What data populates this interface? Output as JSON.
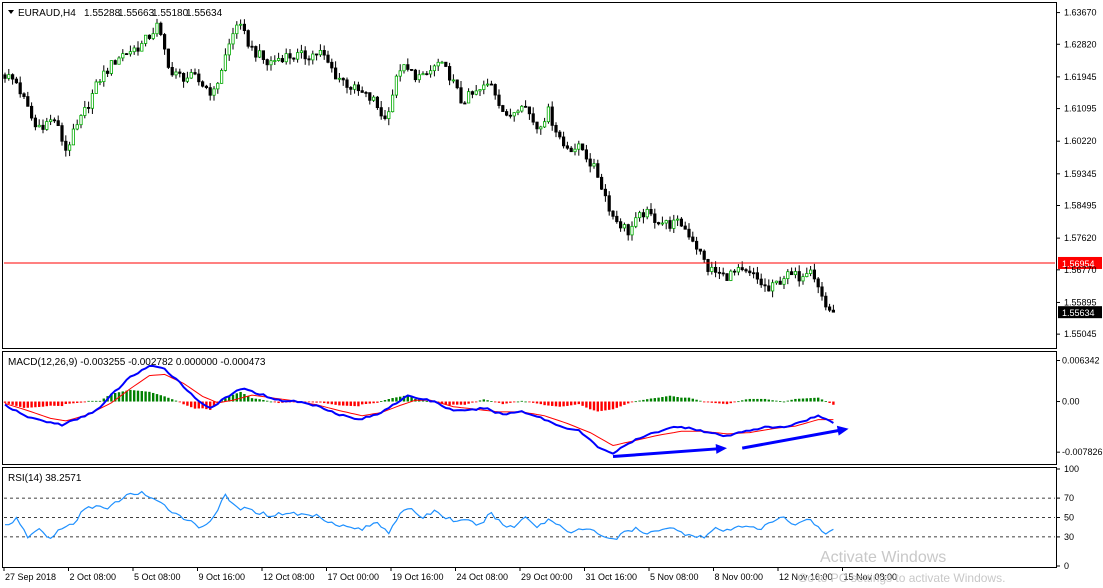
{
  "colors": {
    "background": "#ffffff",
    "frame": "#000000",
    "bull_candle": "#00aa00",
    "bear_candle": "#000000",
    "level_line": "#ff0000",
    "price_label_bg": "#ff0000",
    "last_price_bg": "#000000",
    "macd_hist_pos": "#008000",
    "macd_hist_neg": "#ff0000",
    "macd_line": "#0000ff",
    "signal_line": "#ff0000",
    "rsi_line": "#1e90ff",
    "divergence_arrow": "#0000ff",
    "watermark": "#c8c8c8"
  },
  "chart_data": [
    {
      "type": "candlestick",
      "title": "EURAUD,H4",
      "ohlc_header": [
        "1.55288",
        "1.55663",
        "1.55180",
        "1.55634"
      ],
      "ylim": [
        1.547,
        1.639
      ],
      "y_ticks": [
        "1.63670",
        "1.62820",
        "1.61945",
        "1.61095",
        "1.60220",
        "1.59345",
        "1.58495",
        "1.57620",
        "1.56770",
        "1.55895",
        "1.55045"
      ],
      "x_labels": [
        "27 Sep 2018",
        "2 Oct 08:00",
        "5 Oct 08:00",
        "9 Oct 16:00",
        "12 Oct 08:00",
        "17 Oct 00:00",
        "19 Oct 16:00",
        "24 Oct 08:00",
        "29 Oct 00:00",
        "31 Oct 16:00",
        "5 Nov 08:00",
        "8 Nov 00:00",
        "12 Nov 16:00",
        "15 Nov 08:00"
      ],
      "horizontal_level": {
        "value": 1.56954,
        "label": "1.56954"
      },
      "last_price": {
        "value": 1.55634,
        "label": "1.55634"
      },
      "close_path": [
        [
          0,
          1.62
        ],
        [
          3,
          1.618
        ],
        [
          8,
          1.606
        ],
        [
          13,
          1.608
        ],
        [
          16,
          1.6
        ],
        [
          20,
          1.608
        ],
        [
          25,
          1.619
        ],
        [
          30,
          1.625
        ],
        [
          36,
          1.628
        ],
        [
          40,
          1.633
        ],
        [
          44,
          1.62
        ],
        [
          50,
          1.619
        ],
        [
          55,
          1.615
        ],
        [
          58,
          1.625
        ],
        [
          61,
          1.634
        ],
        [
          65,
          1.627
        ],
        [
          69,
          1.623
        ],
        [
          73,
          1.625
        ],
        [
          79,
          1.625
        ],
        [
          83,
          1.626
        ],
        [
          87,
          1.62
        ],
        [
          92,
          1.616
        ],
        [
          97,
          1.613
        ],
        [
          100,
          1.608
        ],
        [
          104,
          1.622
        ],
        [
          110,
          1.619
        ],
        [
          114,
          1.623
        ],
        [
          117,
          1.62
        ],
        [
          120,
          1.613
        ],
        [
          124,
          1.615
        ],
        [
          128,
          1.618
        ],
        [
          132,
          1.608
        ],
        [
          136,
          1.613
        ],
        [
          140,
          1.606
        ],
        [
          143,
          1.61
        ],
        [
          147,
          1.601
        ],
        [
          152,
          1.6
        ],
        [
          156,
          1.593
        ],
        [
          160,
          1.582
        ],
        [
          164,
          1.578
        ],
        [
          168,
          1.583
        ],
        [
          174,
          1.58
        ],
        [
          178,
          1.58
        ],
        [
          181,
          1.576
        ],
        [
          185,
          1.568
        ],
        [
          189,
          1.566
        ],
        [
          193,
          1.567
        ],
        [
          197,
          1.566
        ],
        [
          201,
          1.562
        ],
        [
          205,
          1.566
        ],
        [
          209,
          1.566
        ],
        [
          212,
          1.569
        ],
        [
          214,
          1.563
        ],
        [
          216,
          1.558
        ],
        [
          218,
          1.5563
        ]
      ]
    },
    {
      "type": "bar+line",
      "title": "MACD(12,26,9) -0.003255 -0.002782 0.000000 -0.000473",
      "ylim": [
        -0.0095,
        0.0075
      ],
      "y_ticks": [
        "0.006342",
        "0.00",
        "-0.007826"
      ],
      "macd_path": [
        [
          0,
          -0.0005
        ],
        [
          5,
          -0.0022
        ],
        [
          10,
          -0.003
        ],
        [
          15,
          -0.0036
        ],
        [
          20,
          -0.0025
        ],
        [
          25,
          -0.001
        ],
        [
          28,
          0.001
        ],
        [
          33,
          0.0038
        ],
        [
          38,
          0.0055
        ],
        [
          42,
          0.005
        ],
        [
          46,
          0.003
        ],
        [
          50,
          0.0005
        ],
        [
          54,
          -0.001
        ],
        [
          58,
          0.0005
        ],
        [
          62,
          0.002
        ],
        [
          67,
          0.0012
        ],
        [
          72,
          0.0002
        ],
        [
          77,
          0.0
        ],
        [
          83,
          -0.0008
        ],
        [
          88,
          -0.002
        ],
        [
          93,
          -0.0028
        ],
        [
          98,
          -0.002
        ],
        [
          102,
          -0.0005
        ],
        [
          106,
          0.0008
        ],
        [
          110,
          0.0004
        ],
        [
          113,
          0.0
        ],
        [
          117,
          -0.0012
        ],
        [
          121,
          -0.0015
        ],
        [
          126,
          -0.001
        ],
        [
          131,
          -0.002
        ],
        [
          136,
          -0.0015
        ],
        [
          141,
          -0.0025
        ],
        [
          146,
          -0.0038
        ],
        [
          151,
          -0.0045
        ],
        [
          156,
          -0.007
        ],
        [
          160,
          -0.008
        ],
        [
          165,
          -0.0062
        ],
        [
          170,
          -0.005
        ],
        [
          175,
          -0.004
        ],
        [
          180,
          -0.004
        ],
        [
          185,
          -0.0048
        ],
        [
          190,
          -0.0054
        ],
        [
          195,
          -0.0045
        ],
        [
          200,
          -0.004
        ],
        [
          205,
          -0.004
        ],
        [
          210,
          -0.003
        ],
        [
          214,
          -0.0022
        ],
        [
          218,
          -0.0033
        ]
      ],
      "signal_path": [
        [
          0,
          -0.0003
        ],
        [
          6,
          -0.0014
        ],
        [
          12,
          -0.0026
        ],
        [
          16,
          -0.003
        ],
        [
          22,
          -0.002
        ],
        [
          28,
          -0.0002
        ],
        [
          33,
          0.002
        ],
        [
          38,
          0.004
        ],
        [
          42,
          0.0042
        ],
        [
          47,
          0.0028
        ],
        [
          52,
          0.0008
        ],
        [
          56,
          -0.0002
        ],
        [
          60,
          0.0002
        ],
        [
          65,
          0.001
        ],
        [
          70,
          0.0006
        ],
        [
          76,
          0.0001
        ],
        [
          82,
          -0.0005
        ],
        [
          88,
          -0.0014
        ],
        [
          94,
          -0.0022
        ],
        [
          99,
          -0.0017
        ],
        [
          104,
          -0.0006
        ],
        [
          108,
          0.0002
        ],
        [
          112,
          0.0002
        ],
        [
          118,
          -0.0008
        ],
        [
          124,
          -0.0012
        ],
        [
          130,
          -0.0016
        ],
        [
          136,
          -0.0016
        ],
        [
          142,
          -0.0022
        ],
        [
          148,
          -0.0034
        ],
        [
          154,
          -0.0048
        ],
        [
          160,
          -0.0068
        ],
        [
          166,
          -0.006
        ],
        [
          172,
          -0.0052
        ],
        [
          178,
          -0.0046
        ],
        [
          184,
          -0.0046
        ],
        [
          190,
          -0.005
        ],
        [
          196,
          -0.0048
        ],
        [
          202,
          -0.0042
        ],
        [
          208,
          -0.0038
        ],
        [
          214,
          -0.0028
        ],
        [
          218,
          -0.0028
        ]
      ],
      "divergence_arrows": [
        {
          "from": [
            160,
            -0.0085
          ],
          "to": [
            190,
            -0.0072
          ]
        },
        {
          "from": [
            194,
            -0.0072
          ],
          "to": [
            222,
            -0.0042
          ]
        }
      ]
    },
    {
      "type": "line",
      "title": "RSI(14) 38.2571",
      "ylim": [
        0,
        100
      ],
      "y_ticks": [
        "100",
        "70",
        "50",
        "30",
        "0"
      ],
      "levels": [
        70,
        50,
        30
      ],
      "rsi_path": [
        [
          0,
          42
        ],
        [
          3,
          48
        ],
        [
          6,
          30
        ],
        [
          9,
          38
        ],
        [
          12,
          28
        ],
        [
          15,
          40
        ],
        [
          18,
          42
        ],
        [
          21,
          60
        ],
        [
          24,
          62
        ],
        [
          27,
          58
        ],
        [
          30,
          68
        ],
        [
          33,
          74
        ],
        [
          36,
          76
        ],
        [
          39,
          68
        ],
        [
          42,
          62
        ],
        [
          45,
          54
        ],
        [
          48,
          48
        ],
        [
          51,
          40
        ],
        [
          54,
          46
        ],
        [
          58,
          72
        ],
        [
          61,
          60
        ],
        [
          64,
          58
        ],
        [
          67,
          55
        ],
        [
          70,
          52
        ],
        [
          74,
          55
        ],
        [
          78,
          53
        ],
        [
          82,
          52
        ],
        [
          86,
          45
        ],
        [
          90,
          40
        ],
        [
          94,
          38
        ],
        [
          98,
          45
        ],
        [
          101,
          35
        ],
        [
          104,
          55
        ],
        [
          107,
          58
        ],
        [
          110,
          50
        ],
        [
          113,
          57
        ],
        [
          116,
          50
        ],
        [
          119,
          46
        ],
        [
          122,
          46
        ],
        [
          125,
          42
        ],
        [
          128,
          55
        ],
        [
          131,
          42
        ],
        [
          134,
          40
        ],
        [
          137,
          52
        ],
        [
          140,
          40
        ],
        [
          143,
          48
        ],
        [
          146,
          42
        ],
        [
          149,
          35
        ],
        [
          152,
          38
        ],
        [
          155,
          36
        ],
        [
          158,
          30
        ],
        [
          161,
          28
        ],
        [
          163,
          35
        ],
        [
          166,
          38
        ],
        [
          169,
          32
        ],
        [
          172,
          38
        ],
        [
          175,
          40
        ],
        [
          178,
          34
        ],
        [
          181,
          32
        ],
        [
          184,
          30
        ],
        [
          187,
          38
        ],
        [
          190,
          36
        ],
        [
          193,
          40
        ],
        [
          196,
          42
        ],
        [
          199,
          38
        ],
        [
          202,
          46
        ],
        [
          205,
          50
        ],
        [
          208,
          42
        ],
        [
          211,
          50
        ],
        [
          214,
          40
        ],
        [
          216,
          32
        ],
        [
          218,
          38
        ]
      ]
    }
  ],
  "watermark": {
    "line1": "Activate Windows",
    "line2": "Go to PC settings to activate Windows."
  }
}
